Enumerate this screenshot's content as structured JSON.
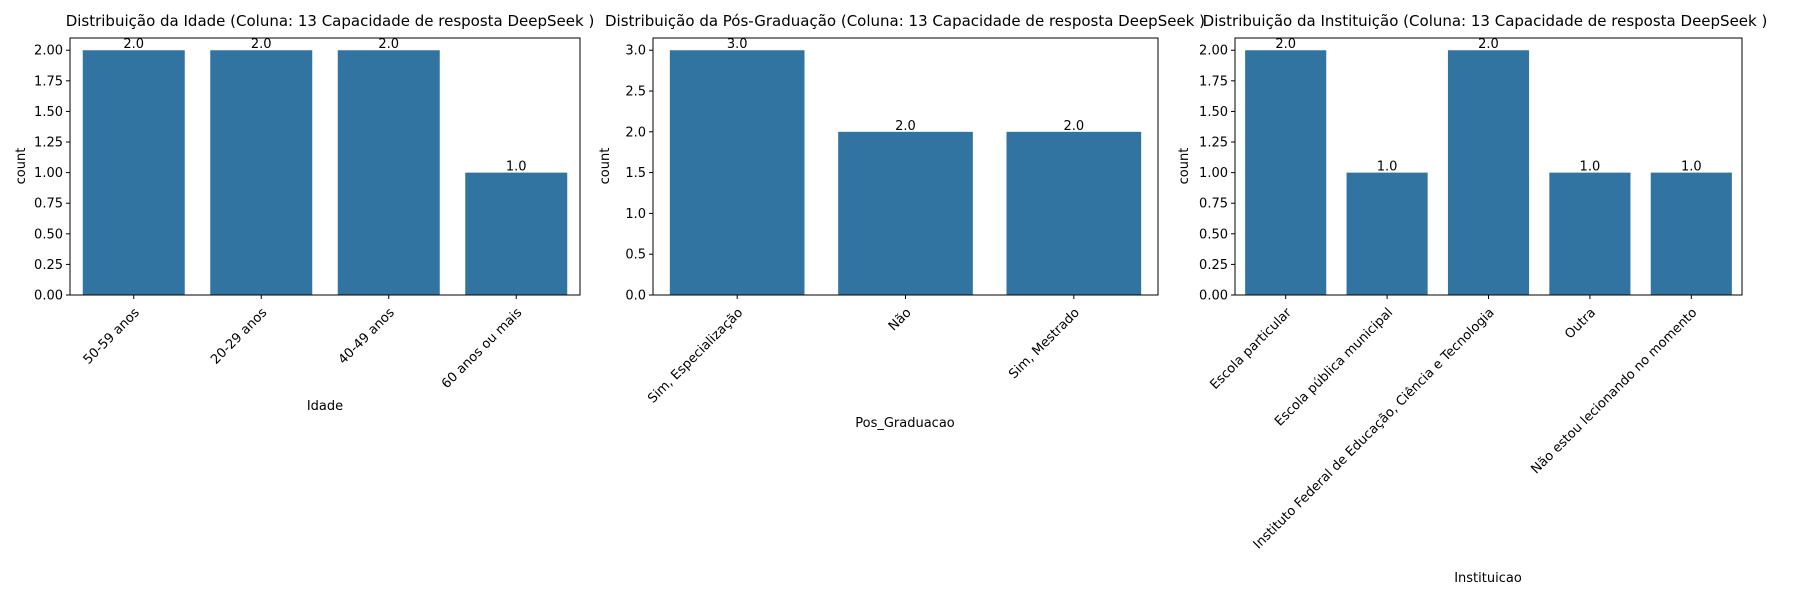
{
  "colors": {
    "bar": "#3274a1",
    "axis": "#000000",
    "background": "#ffffff"
  },
  "chart_data": [
    {
      "type": "bar",
      "title": "Distribuição da Idade (Coluna: 13 Capacidade de resposta DeepSeek )",
      "xlabel": "Idade",
      "ylabel": "count",
      "categories": [
        "50-59 anos",
        "20-29 anos",
        "40-49 anos",
        "60 anos ou mais"
      ],
      "values": [
        2.0,
        2.0,
        2.0,
        1.0
      ],
      "value_labels": [
        "2.0",
        "2.0",
        "2.0",
        "1.0"
      ],
      "ylim": [
        0,
        2.1
      ],
      "yticks": [
        0.0,
        0.25,
        0.5,
        0.75,
        1.0,
        1.25,
        1.5,
        1.75,
        2.0
      ],
      "ytick_labels": [
        "0.00",
        "0.25",
        "0.50",
        "0.75",
        "1.00",
        "1.25",
        "1.50",
        "1.75",
        "2.00"
      ],
      "grid": false
    },
    {
      "type": "bar",
      "title": "Distribuição da Pós-Graduação (Coluna: 13 Capacidade de resposta DeepSeek )",
      "xlabel": "Pos_Graduacao",
      "ylabel": "count",
      "categories": [
        "Sim, Especialização",
        "Não",
        "Sim, Mestrado"
      ],
      "values": [
        3.0,
        2.0,
        2.0
      ],
      "value_labels": [
        "3.0",
        "2.0",
        "2.0"
      ],
      "ylim": [
        0,
        3.15
      ],
      "yticks": [
        0.0,
        0.5,
        1.0,
        1.5,
        2.0,
        2.5,
        3.0
      ],
      "ytick_labels": [
        "0.0",
        "0.5",
        "1.0",
        "1.5",
        "2.0",
        "2.5",
        "3.0"
      ],
      "grid": false
    },
    {
      "type": "bar",
      "title": "Distribuição da Instituição (Coluna: 13 Capacidade de resposta DeepSeek )",
      "xlabel": "Instituicao",
      "ylabel": "count",
      "categories": [
        "Escola particular",
        "Escola pública municipal",
        "Instituto Federal de Educação, Ciência e Tecnologia",
        "Outra",
        "Não estou lecionando no momento"
      ],
      "values": [
        2.0,
        1.0,
        2.0,
        1.0,
        1.0
      ],
      "value_labels": [
        "2.0",
        "1.0",
        "2.0",
        "1.0",
        "1.0"
      ],
      "ylim": [
        0,
        2.1
      ],
      "yticks": [
        0.0,
        0.25,
        0.5,
        0.75,
        1.0,
        1.25,
        1.5,
        1.75,
        2.0
      ],
      "ytick_labels": [
        "0.00",
        "0.25",
        "0.50",
        "0.75",
        "1.00",
        "1.25",
        "1.50",
        "1.75",
        "2.00"
      ],
      "grid": false
    }
  ]
}
